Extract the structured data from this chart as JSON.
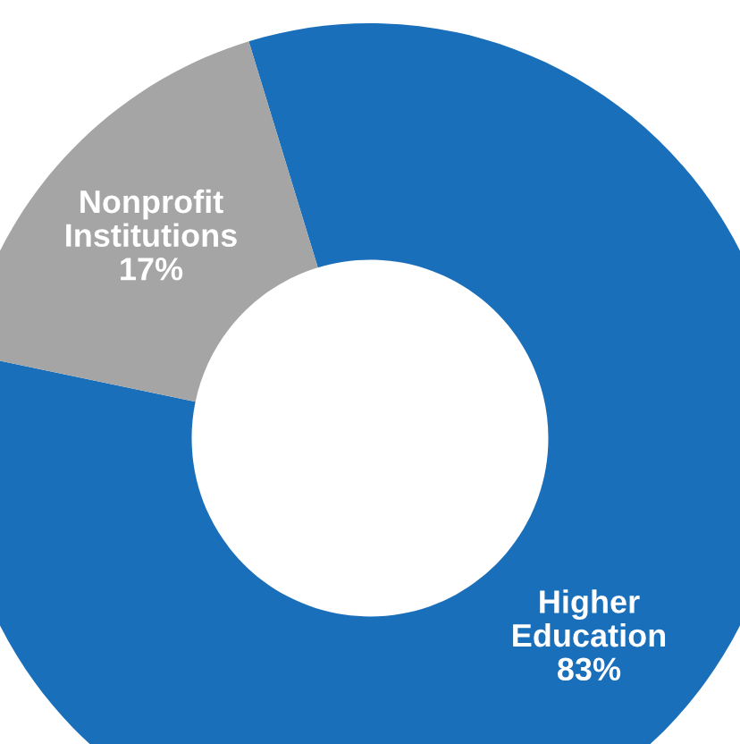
{
  "chart_data": {
    "type": "donut",
    "categories": [
      "Higher Education",
      "Nonprofit Institutions"
    ],
    "values": [
      83,
      17
    ],
    "value_labels": [
      "83%",
      "17%"
    ],
    "colors": [
      "#1a6fba",
      "#a5a5a5"
    ]
  }
}
